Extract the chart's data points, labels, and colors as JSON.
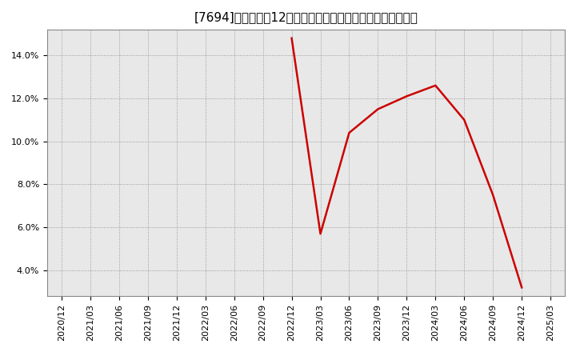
{
  "title": "[7694]　売上高の12か月移動合計の対前年同期増減率の推移",
  "line_color": "#cc0000",
  "background_color": "#ffffff",
  "plot_bg_color": "#e8e8e8",
  "grid_color": "#888888",
  "border_color": "#888888",
  "x_labels": [
    "2020/12",
    "2021/03",
    "2021/06",
    "2021/09",
    "2021/12",
    "2022/03",
    "2022/06",
    "2022/09",
    "2022/12",
    "2023/03",
    "2023/06",
    "2023/09",
    "2023/12",
    "2024/03",
    "2024/06",
    "2024/09",
    "2024/12",
    "2025/03"
  ],
  "dates": [
    "2022/12",
    "2023/03",
    "2023/06",
    "2023/09",
    "2023/12",
    "2024/03",
    "2024/06",
    "2024/09",
    "2024/12"
  ],
  "values": [
    0.148,
    0.057,
    0.104,
    0.115,
    0.121,
    0.126,
    0.11,
    0.075,
    0.032
  ],
  "ylim": [
    0.028,
    0.152
  ],
  "yticks": [
    0.04,
    0.06,
    0.08,
    0.1,
    0.12,
    0.14
  ],
  "title_fontsize": 11,
  "tick_fontsize": 8,
  "line_width": 1.8
}
